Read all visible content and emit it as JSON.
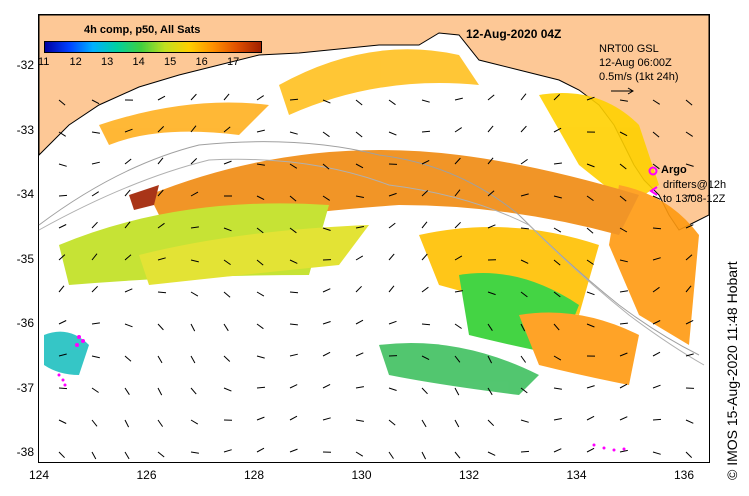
{
  "map": {
    "title": "12-Aug-2020 04Z",
    "colorbar": {
      "label": "4h comp, p50, All Sats",
      "ticks": [
        "11",
        "12",
        "13",
        "14",
        "15",
        "16",
        "17"
      ],
      "colors": [
        "#0000a0",
        "#0040ff",
        "#00b0ff",
        "#00d0a0",
        "#40d040",
        "#c0e020",
        "#ffd000",
        "#ff9000",
        "#e05000",
        "#a02000"
      ]
    },
    "current_info": {
      "line1": "NRT00 GSL",
      "line2": "12-Aug 06:00Z",
      "line3": "0.5m/s (1kt 24h)"
    },
    "legend": {
      "argo_label": "Argo",
      "drifters_line1": "drifters@12h",
      "drifters_line2": "to 13/08-12Z"
    },
    "x_ticks": [
      "124",
      "126",
      "128",
      "130",
      "132",
      "134",
      "136"
    ],
    "y_ticks": [
      "-32",
      "-33",
      "-34",
      "-35",
      "-36",
      "-37",
      "-38"
    ],
    "credit": "© IMOS 15-Aug-2020 11:48 Hobart",
    "colors": {
      "land": "#fdc896",
      "argo": "#ff00ff"
    }
  }
}
